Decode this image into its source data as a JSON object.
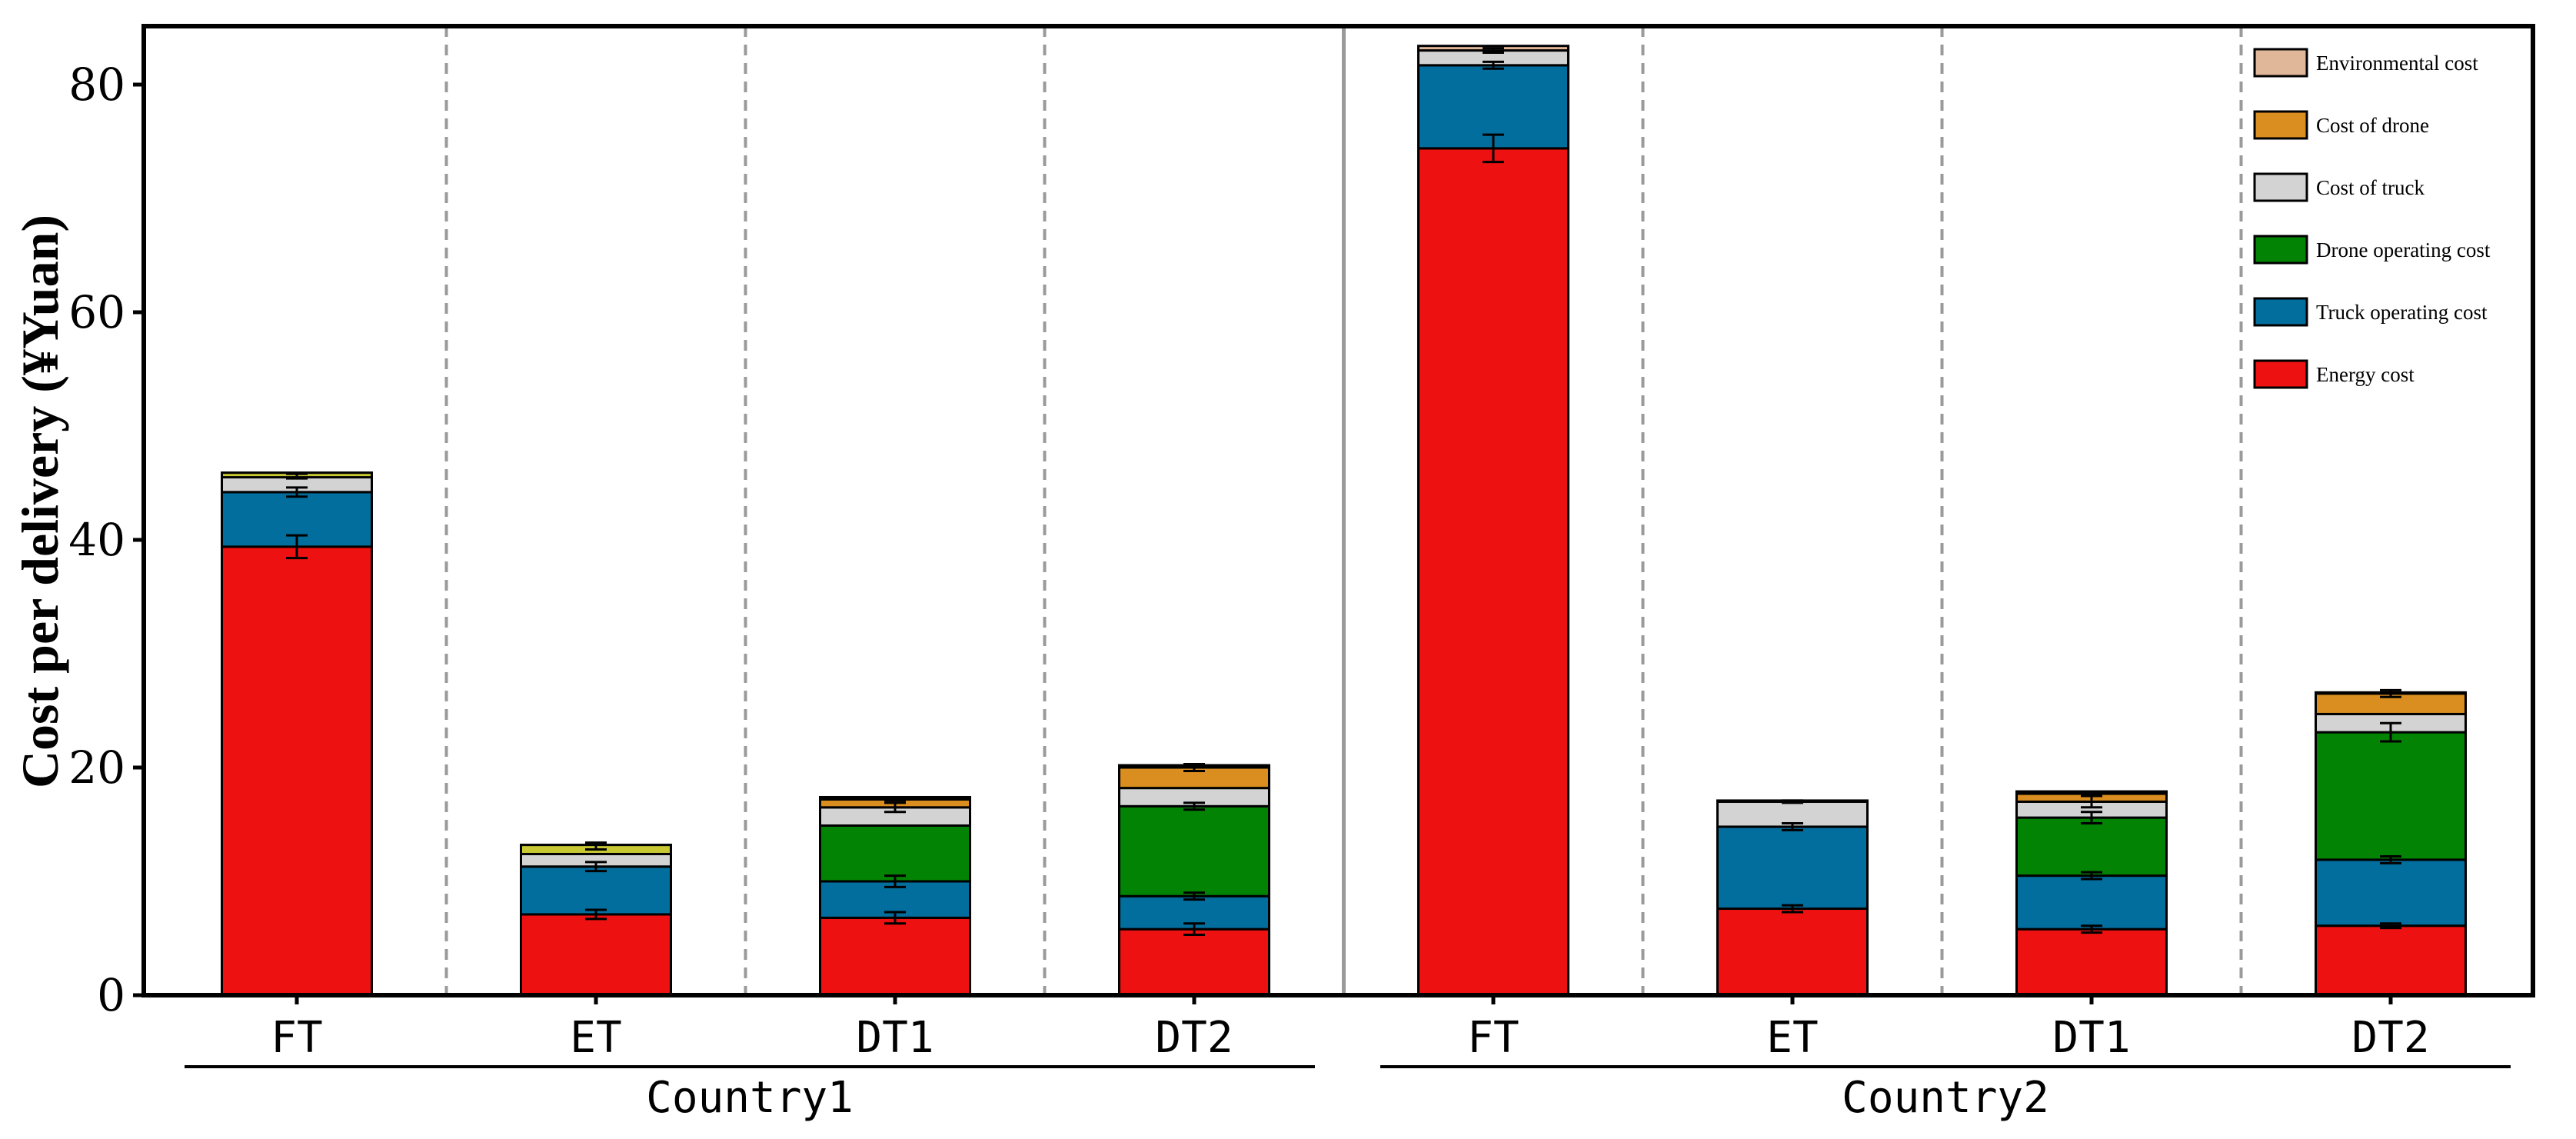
{
  "chart_data": {
    "type": "bar",
    "stacked": true,
    "ylabel": "Cost per delivery (¥Yuan)",
    "ylim": [
      0,
      85
    ],
    "yticks": [
      "0",
      "20",
      "40",
      "60",
      "80"
    ],
    "categories": [
      "FT",
      "ET",
      "DT1",
      "DT2",
      "FT",
      "ET",
      "DT1",
      "DT2"
    ],
    "groups": [
      {
        "label": "Country1",
        "categories": [
          "FT",
          "ET",
          "DT1",
          "DT2"
        ]
      },
      {
        "label": "Country2",
        "categories": [
          "FT",
          "ET",
          "DT1",
          "DT2"
        ]
      }
    ],
    "series": [
      {
        "name": "Energy cost",
        "color": "#EE1111",
        "values": [
          39.4,
          7.1,
          6.8,
          5.8,
          74.4,
          7.6,
          5.8,
          6.1
        ],
        "error": [
          1.0,
          0.4,
          0.5,
          0.5,
          1.2,
          0.3,
          0.3,
          0.2
        ]
      },
      {
        "name": "Truck operating cost",
        "color": "#026E9E",
        "values": [
          4.8,
          4.2,
          3.2,
          2.9,
          7.3,
          7.2,
          4.7,
          5.8
        ],
        "error": [
          0.4,
          0.4,
          0.5,
          0.3,
          0.3,
          0.3,
          0.3,
          0.3
        ]
      },
      {
        "name": "Drone operating cost",
        "color": "#038303",
        "values": [
          0,
          0,
          4.9,
          7.9,
          0,
          0,
          5.1,
          11.2
        ],
        "error": [
          0,
          0,
          0,
          0.3,
          0,
          0,
          0.5,
          0.8
        ]
      },
      {
        "name": "Cost of truck",
        "color": "#D3D3D3",
        "values": [
          1.4,
          1.8,
          1.6,
          1.6,
          1.3,
          2.2,
          1.4,
          1.6
        ],
        "error": [
          0.2,
          0.3,
          0.4,
          0,
          0.2,
          0.1,
          0.5,
          0
        ]
      },
      {
        "name": "Cost of drone",
        "color": "#D98E1F",
        "values": [
          0,
          0,
          0.7,
          1.8,
          0,
          0,
          0.7,
          1.8
        ],
        "error": [
          0,
          0,
          0.1,
          0.3,
          0,
          0,
          0,
          0.3
        ]
      },
      {
        "name": "Environmental cost",
        "color": "#E0B799",
        "values": [
          0.3,
          0.1,
          0.2,
          0.2,
          0.4,
          0.1,
          0.2,
          0.1
        ],
        "error": [
          0,
          0,
          0,
          0,
          0,
          0,
          0,
          0
        ]
      }
    ],
    "extra_top_segments": [
      {
        "category_index": 0,
        "value": 0.4,
        "color": "#C8C832"
      },
      {
        "category_index": 1,
        "value": 0.8,
        "color": "#C8C832"
      }
    ],
    "legend": [
      {
        "name": "Environmental cost",
        "color": "#E0B799"
      },
      {
        "name": "Cost of drone",
        "color": "#D98E1F"
      },
      {
        "name": "Cost of truck",
        "color": "#D3D3D3"
      },
      {
        "name": "Drone operating cost",
        "color": "#038303"
      },
      {
        "name": "Truck operating cost",
        "color": "#026E9E"
      },
      {
        "name": "Energy cost",
        "color": "#EE1111"
      }
    ],
    "legend_position": "top-right",
    "grid": false
  }
}
